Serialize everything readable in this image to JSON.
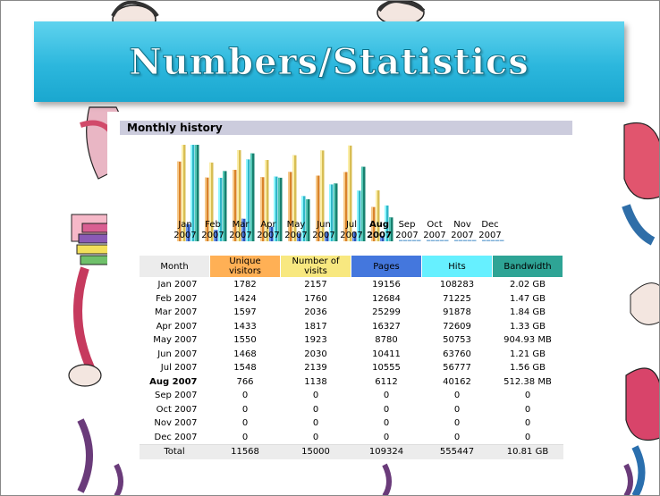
{
  "slide": {
    "title": "Numbers/Statistics"
  },
  "panel": {
    "header": "Monthly history"
  },
  "table": {
    "columns": [
      "Month",
      "Unique visitors",
      "Number of visits",
      "Pages",
      "Hits",
      "Bandwidth"
    ],
    "rows": [
      {
        "month": "Jan 2007",
        "unique": "1782",
        "visits": "2157",
        "pages": "19156",
        "hits": "108283",
        "bandwidth": "2.02 GB"
      },
      {
        "month": "Feb 2007",
        "unique": "1424",
        "visits": "1760",
        "pages": "12684",
        "hits": "71225",
        "bandwidth": "1.47 GB"
      },
      {
        "month": "Mar 2007",
        "unique": "1597",
        "visits": "2036",
        "pages": "25299",
        "hits": "91878",
        "bandwidth": "1.84 GB"
      },
      {
        "month": "Apr 2007",
        "unique": "1433",
        "visits": "1817",
        "pages": "16327",
        "hits": "72609",
        "bandwidth": "1.33 GB"
      },
      {
        "month": "May 2007",
        "unique": "1550",
        "visits": "1923",
        "pages": "8780",
        "hits": "50753",
        "bandwidth": "904.93 MB"
      },
      {
        "month": "Jun 2007",
        "unique": "1468",
        "visits": "2030",
        "pages": "10411",
        "hits": "63760",
        "bandwidth": "1.21 GB"
      },
      {
        "month": "Jul 2007",
        "unique": "1548",
        "visits": "2139",
        "pages": "10555",
        "hits": "56777",
        "bandwidth": "1.56 GB"
      },
      {
        "month": "Aug 2007",
        "unique": "766",
        "visits": "1138",
        "pages": "6112",
        "hits": "40162",
        "bandwidth": "512.38 MB"
      },
      {
        "month": "Sep 2007",
        "unique": "0",
        "visits": "0",
        "pages": "0",
        "hits": "0",
        "bandwidth": "0"
      },
      {
        "month": "Oct 2007",
        "unique": "0",
        "visits": "0",
        "pages": "0",
        "hits": "0",
        "bandwidth": "0"
      },
      {
        "month": "Nov 2007",
        "unique": "0",
        "visits": "0",
        "pages": "0",
        "hits": "0",
        "bandwidth": "0"
      },
      {
        "month": "Dec 2007",
        "unique": "0",
        "visits": "0",
        "pages": "0",
        "hits": "0",
        "bandwidth": "0"
      }
    ],
    "total": {
      "month": "Total",
      "unique": "11568",
      "visits": "15000",
      "pages": "109324",
      "hits": "555447",
      "bandwidth": "10.81 GB"
    }
  },
  "chart_data": {
    "type": "bar",
    "categories": [
      "Jan 2007",
      "Feb 2007",
      "Mar 2007",
      "Apr 2007",
      "May 2007",
      "Jun 2007",
      "Jul 2007",
      "Aug 2007",
      "Sep 2007",
      "Oct 2007",
      "Nov 2007",
      "Dec 2007"
    ],
    "tick_labels": [
      [
        "Jan",
        "2007"
      ],
      [
        "Feb",
        "2007"
      ],
      [
        "Mar",
        "2007"
      ],
      [
        "Apr",
        "2007"
      ],
      [
        "May",
        "2007"
      ],
      [
        "Jun",
        "2007"
      ],
      [
        "Jul",
        "2007"
      ],
      [
        "Aug",
        "2007"
      ],
      [
        "Sep",
        "2007"
      ],
      [
        "Oct",
        "2007"
      ],
      [
        "Nov",
        "2007"
      ],
      [
        "Dec",
        "2007"
      ]
    ],
    "highlight_index": 7,
    "series": [
      {
        "name": "Unique visitors",
        "color": "#ffb055",
        "values": [
          1782,
          1424,
          1597,
          1433,
          1550,
          1468,
          1548,
          766,
          0,
          0,
          0,
          0
        ]
      },
      {
        "name": "Number of visits",
        "color": "#f8e880",
        "values": [
          2157,
          1760,
          2036,
          1817,
          1923,
          2030,
          2139,
          1138,
          0,
          0,
          0,
          0
        ]
      },
      {
        "name": "Pages",
        "color": "#4477dd",
        "values": [
          19156,
          12684,
          25299,
          16327,
          8780,
          10411,
          10555,
          6112,
          0,
          0,
          0,
          0
        ]
      },
      {
        "name": "Hits",
        "color": "#66f0ff",
        "values": [
          108283,
          71225,
          91878,
          72609,
          50753,
          63760,
          56777,
          40162,
          0,
          0,
          0,
          0
        ]
      },
      {
        "name": "Bandwidth (GB)",
        "color": "#2ea495",
        "values": [
          2.02,
          1.47,
          1.84,
          1.33,
          0.88,
          1.21,
          1.56,
          0.5,
          0,
          0,
          0,
          0
        ]
      }
    ],
    "title": "",
    "xlabel": "",
    "ylabel": ""
  }
}
